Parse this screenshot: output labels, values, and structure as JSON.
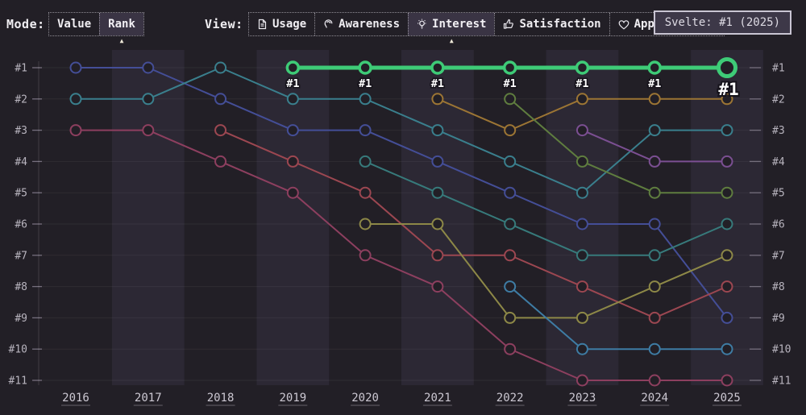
{
  "toolbar": {
    "mode_label": "Mode:",
    "modes": [
      {
        "label": "Value",
        "active": false
      },
      {
        "label": "Rank",
        "active": true
      }
    ],
    "view_label": "View:",
    "views": [
      {
        "label": "Usage",
        "icon": "document-icon",
        "active": false
      },
      {
        "label": "Awareness",
        "icon": "ear-icon",
        "active": false
      },
      {
        "label": "Interest",
        "icon": "lightbulb-icon",
        "active": true
      },
      {
        "label": "Satisfaction",
        "icon": "thumbs-up-icon",
        "active": false
      },
      {
        "label": "Appreciation",
        "icon": "heart-icon",
        "active": false
      }
    ]
  },
  "tooltip": {
    "text": "Svelte: #1 (2025)"
  },
  "colors": {
    "background": "#221f26",
    "band": "#2c2834",
    "grid": "rgba(255,255,255,0.06)",
    "axis_line": "rgba(255,255,255,0.14)",
    "tick": "#756f7d",
    "rank_label": "#b8b4be",
    "year_label": "#ccc8d2",
    "accent_green": "#3ecb77",
    "point_fill": "#221f26",
    "point_label": "#ffffff",
    "point_label_outline": "#15121a"
  },
  "chart_data": {
    "type": "line",
    "subtype": "bump-rank",
    "title": "",
    "x": [
      2016,
      2017,
      2018,
      2019,
      2020,
      2021,
      2022,
      2023,
      2024,
      2025
    ],
    "x_tick_labels": [
      "2016",
      "2017",
      "2018",
      "2019",
      "2020",
      "2021",
      "2022",
      "2023",
      "2024",
      "2025"
    ],
    "y_axis": {
      "labels": [
        "#1",
        "#2",
        "#3",
        "#4",
        "#5",
        "#6",
        "#7",
        "#8",
        "#9",
        "#10",
        "#11"
      ],
      "sides": [
        "left",
        "right"
      ],
      "inverted": true
    },
    "legend": "none",
    "grid": "horizontal",
    "highlighted_series": "Svelte",
    "series": [
      {
        "name": "series-indigo",
        "color": "#444e97",
        "highlight": false,
        "ranks": [
          1,
          1,
          2,
          3,
          3,
          4,
          5,
          6,
          6,
          9
        ]
      },
      {
        "name": "series-teal",
        "color": "#3a7f8d",
        "highlight": false,
        "ranks": [
          2,
          2,
          1,
          2,
          2,
          3,
          4,
          5,
          3,
          3
        ]
      },
      {
        "name": "series-magenta",
        "color": "#8d3f5f",
        "highlight": false,
        "ranks": [
          3,
          3,
          4,
          5,
          7,
          8,
          10,
          11,
          11,
          11
        ]
      },
      {
        "name": "series-crimson",
        "color": "#9c4751",
        "highlight": false,
        "ranks": [
          null,
          null,
          3,
          4,
          5,
          7,
          7,
          8,
          9,
          8
        ]
      },
      {
        "name": "series-dark-teal",
        "color": "#377a7b",
        "highlight": false,
        "ranks": [
          null,
          null,
          null,
          null,
          4,
          5,
          6,
          7,
          7,
          6
        ]
      },
      {
        "name": "series-olive",
        "color": "#8d8847",
        "highlight": false,
        "ranks": [
          null,
          null,
          null,
          null,
          6,
          6,
          9,
          9,
          8,
          7
        ]
      },
      {
        "name": "series-gold",
        "color": "#9c7534",
        "highlight": false,
        "ranks": [
          null,
          null,
          null,
          null,
          null,
          2,
          3,
          2,
          2,
          2
        ]
      },
      {
        "name": "series-olive-green",
        "color": "#5f7d3f",
        "highlight": false,
        "ranks": [
          null,
          null,
          null,
          null,
          null,
          null,
          2,
          4,
          5,
          5
        ]
      },
      {
        "name": "series-steel-blue",
        "color": "#3e7ca4",
        "highlight": false,
        "ranks": [
          null,
          null,
          null,
          null,
          null,
          null,
          8,
          10,
          10,
          10
        ]
      },
      {
        "name": "series-purple",
        "color": "#7b4f92",
        "highlight": false,
        "ranks": [
          null,
          null,
          null,
          null,
          null,
          null,
          null,
          3,
          4,
          4
        ]
      },
      {
        "name": "Svelte",
        "color": "#3ecb77",
        "highlight": true,
        "ranks": [
          null,
          null,
          null,
          1,
          1,
          1,
          1,
          1,
          1,
          1
        ],
        "point_labels": [
          null,
          null,
          null,
          "#1",
          "#1",
          "#1",
          "#1",
          "#1",
          "#1",
          "#1"
        ],
        "final_point_label": "#1"
      }
    ]
  }
}
